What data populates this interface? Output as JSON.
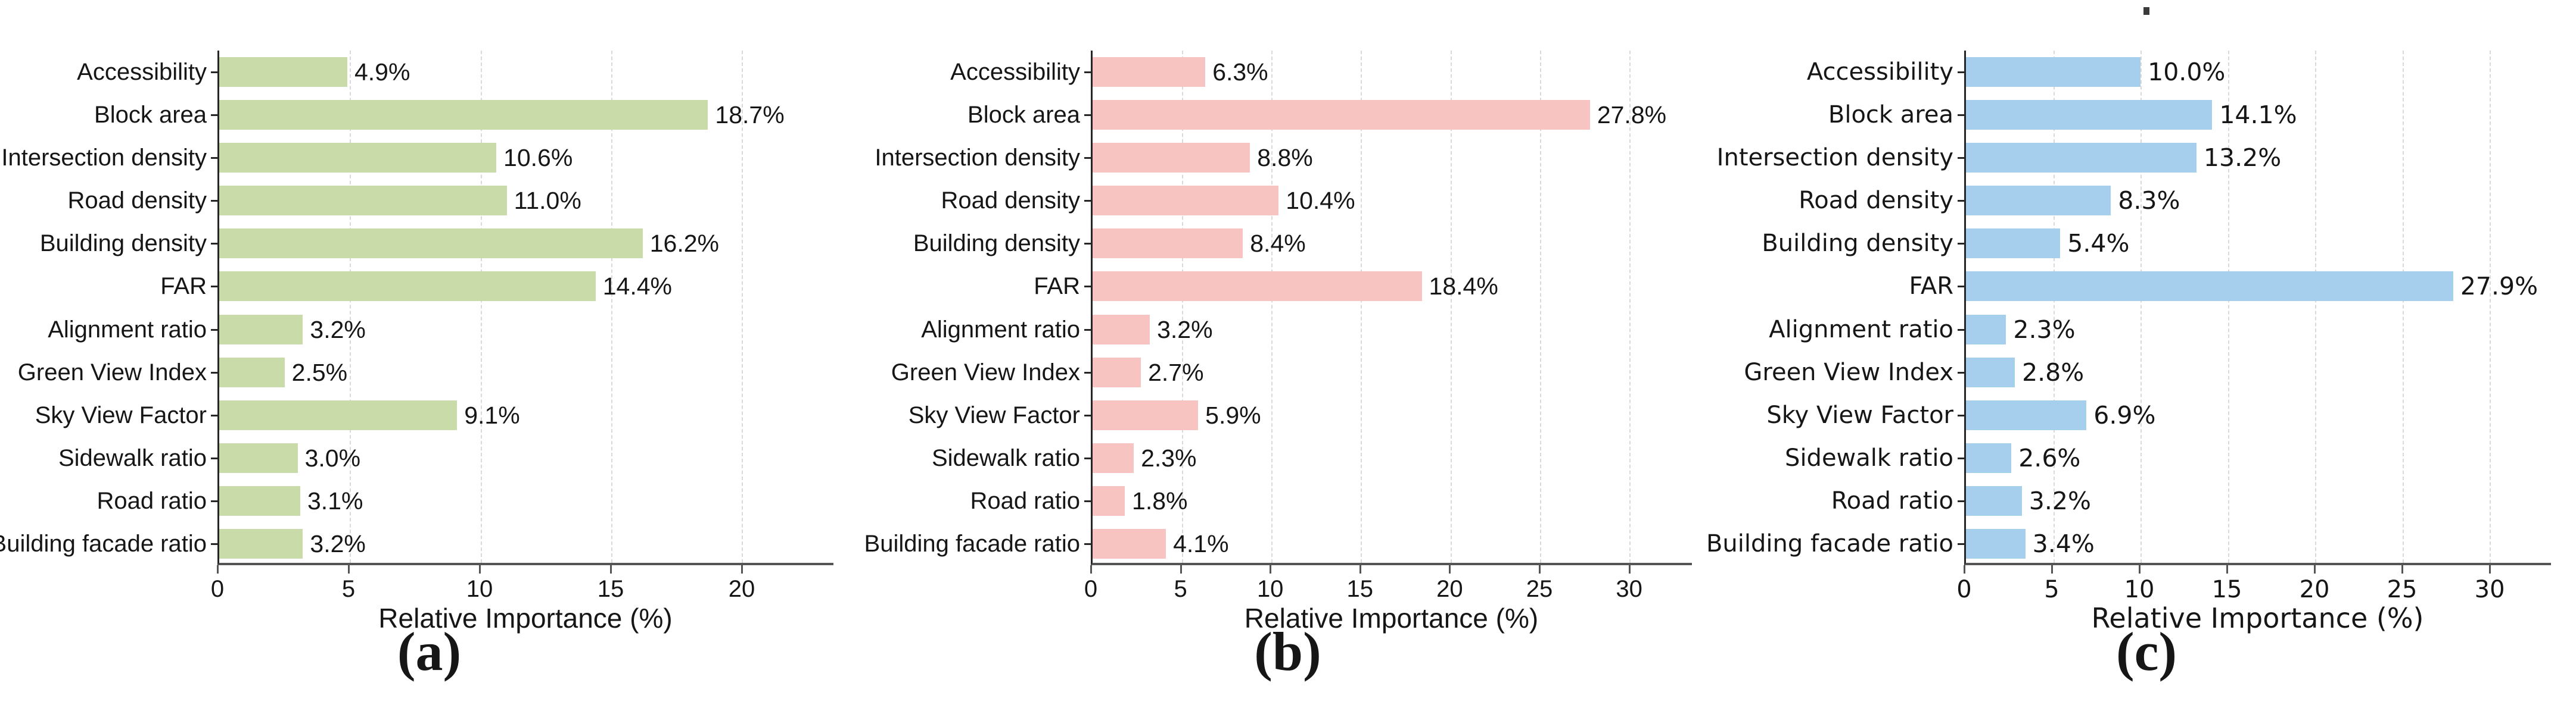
{
  "figure": {
    "xlabel": "Relative Importance (%)"
  },
  "chart_data": [
    {
      "type": "bar",
      "orientation": "horizontal",
      "panel": "a",
      "caption": "(a)",
      "bar_color": "#c9dba9",
      "title": "",
      "xlabel": "Relative Importance (%)",
      "ylabel": "",
      "categories": [
        "Accessibility",
        "Block area",
        "Intersection density",
        "Road density",
        "Building density",
        "FAR",
        "Alignment ratio",
        "Green View Index",
        "Sky View Factor",
        "Sidewalk ratio",
        "Road ratio",
        "Building facade ratio"
      ],
      "values": [
        4.9,
        18.7,
        10.6,
        11.0,
        16.2,
        14.4,
        3.2,
        2.5,
        9.1,
        3.0,
        3.1,
        3.2
      ],
      "value_labels": [
        "4.9%",
        "18.7%",
        "10.6%",
        "11.0%",
        "16.2%",
        "14.4%",
        "3.2%",
        "2.5%",
        "9.1%",
        "3.0%",
        "3.1%",
        "3.2%"
      ],
      "xticks": [
        0,
        5,
        10,
        15,
        20
      ],
      "xlim": [
        0,
        23.5
      ],
      "grid": "dashed-vertical",
      "legend": "none"
    },
    {
      "type": "bar",
      "orientation": "horizontal",
      "panel": "b",
      "caption": "(b)",
      "bar_color": "#f8c4c1",
      "title": "",
      "xlabel": "Relative Importance (%)",
      "ylabel": "",
      "categories": [
        "Accessibility",
        "Block area",
        "Intersection density",
        "Road density",
        "Building density",
        "FAR",
        "Alignment ratio",
        "Green View Index",
        "Sky View Factor",
        "Sidewalk ratio",
        "Road ratio",
        "Building facade ratio"
      ],
      "values": [
        6.3,
        27.8,
        8.8,
        10.4,
        8.4,
        18.4,
        3.2,
        2.7,
        5.9,
        2.3,
        1.8,
        4.1
      ],
      "value_labels": [
        "6.3%",
        "27.8%",
        "8.8%",
        "10.4%",
        "8.4%",
        "18.4%",
        "3.2%",
        "2.7%",
        "5.9%",
        "2.3%",
        "1.8%",
        "4.1%"
      ],
      "xticks": [
        0,
        5,
        10,
        15,
        20,
        25,
        30
      ],
      "xlim": [
        0,
        33.5
      ],
      "grid": "dashed-vertical",
      "legend": "none"
    },
    {
      "type": "bar",
      "orientation": "horizontal",
      "panel": "c",
      "caption": "(c)",
      "bar_color": "#a6cfee",
      "title": "",
      "xlabel": "Relative Importance (%)",
      "ylabel": "",
      "stray_mark": true,
      "categories": [
        "Accessibility",
        "Block area",
        "Intersection density",
        "Road density",
        "Building density",
        "FAR",
        "Alignment ratio",
        "Green View Index",
        "Sky View Factor",
        "Sidewalk ratio",
        "Road ratio",
        "Building facade ratio"
      ],
      "values": [
        10.0,
        14.1,
        13.2,
        8.3,
        5.4,
        27.9,
        2.3,
        2.8,
        6.9,
        2.6,
        3.2,
        3.4
      ],
      "value_labels": [
        "10.0%",
        "14.1%",
        "13.2%",
        "8.3%",
        "5.4%",
        "27.9%",
        "2.3%",
        "2.8%",
        "6.9%",
        "2.6%",
        "3.2%",
        "3.4%"
      ],
      "xticks": [
        0,
        5,
        10,
        15,
        20,
        25,
        30
      ],
      "xlim": [
        0,
        33.5
      ],
      "grid": "dashed-vertical",
      "legend": "none"
    }
  ]
}
